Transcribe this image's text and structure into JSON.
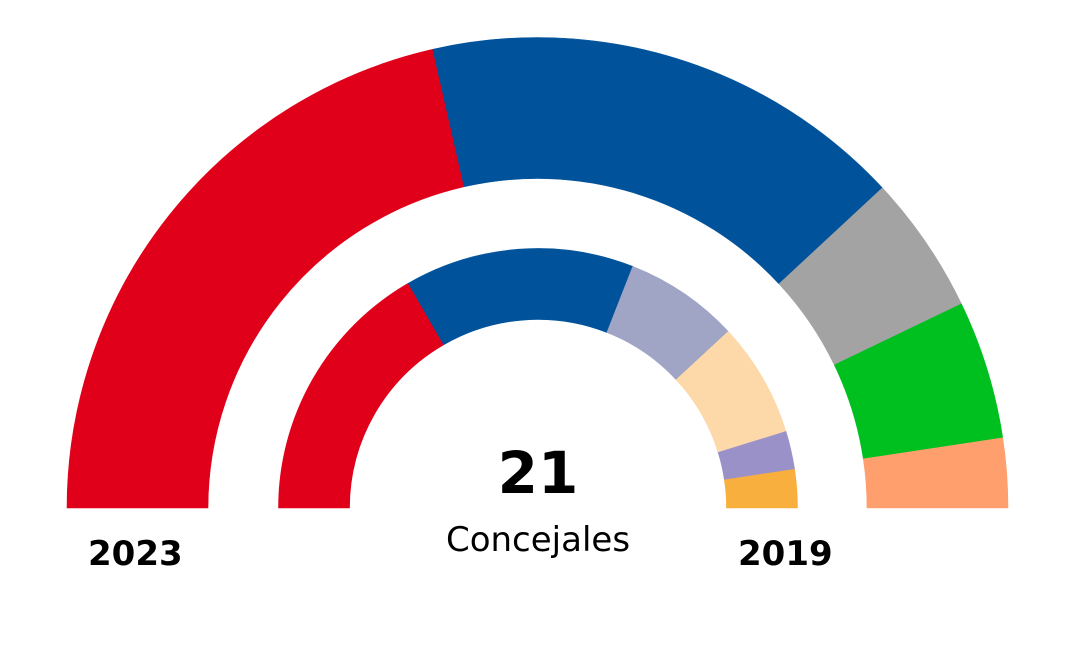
{
  "chart_data": {
    "type": "pie",
    "subtype": "parliament-semicircle",
    "total_seats": 21,
    "total_label": "21",
    "center_label": "Concejales",
    "rings": [
      {
        "name": "2023",
        "label": "2023",
        "position": "outer",
        "segments": [
          {
            "seats": 9,
            "color": "#E0001A"
          },
          {
            "seats": 7,
            "color": "#00539B"
          },
          {
            "seats": 2,
            "color": "#A3A3A3"
          },
          {
            "seats": 2,
            "color": "#00C020"
          },
          {
            "seats": 1,
            "color": "#FF9F6E"
          }
        ]
      },
      {
        "name": "2019",
        "label": "2019",
        "position": "inner",
        "segments": [
          {
            "seats": 7,
            "color": "#E0001A"
          },
          {
            "seats": 6,
            "color": "#00539B"
          },
          {
            "seats": 3,
            "color": "#A0A4C5"
          },
          {
            "seats": 3,
            "color": "#FDD8A8"
          },
          {
            "seats": 1,
            "color": "#9B91C9"
          },
          {
            "seats": 1,
            "color": "#F9AF3D"
          }
        ]
      }
    ]
  }
}
